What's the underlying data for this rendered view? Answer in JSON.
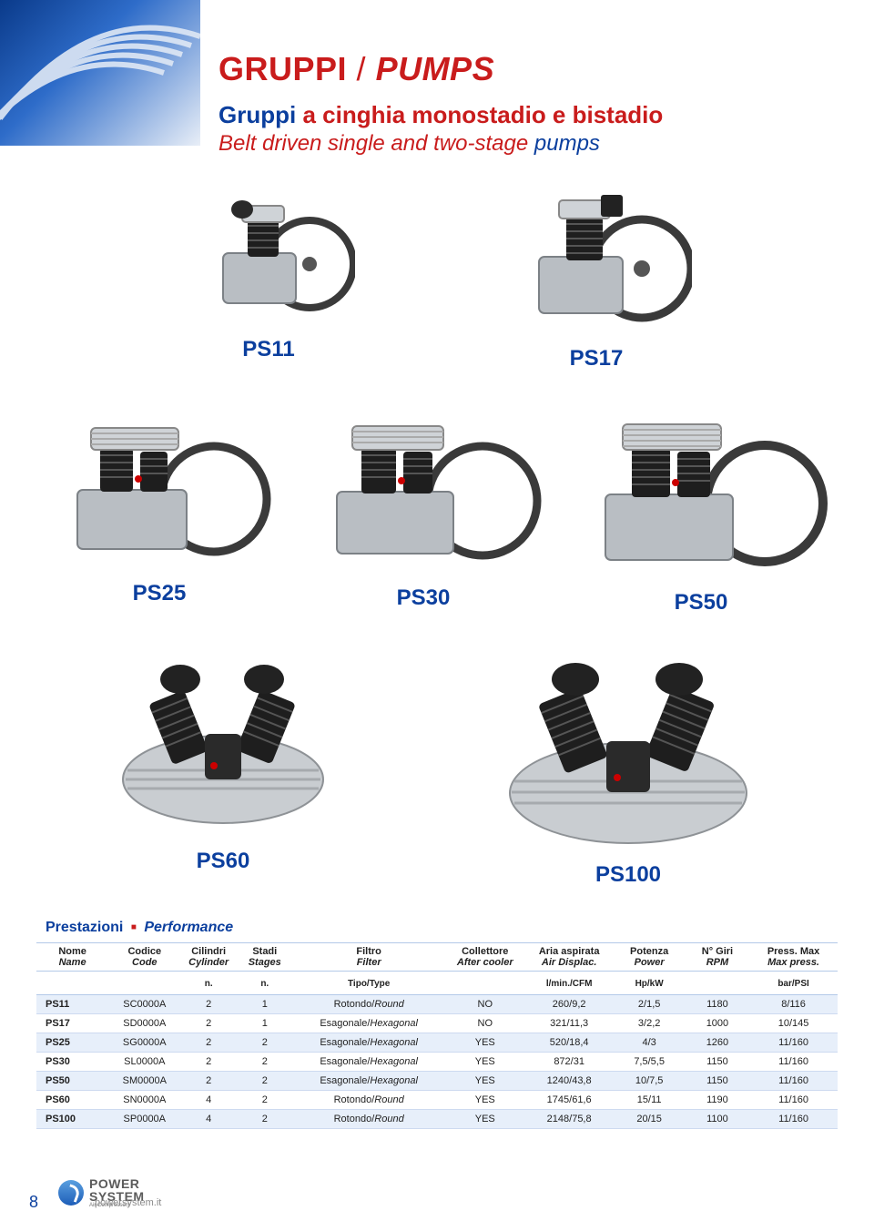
{
  "header": {
    "title_it": "GRUPPI",
    "title_en": "PUMPS",
    "sub_it_part1": "Gruppi",
    "sub_it_part2": "a cinghia monostadio e bistadio",
    "sub_en_part1": "Belt driven single and two-stage",
    "sub_en_part2": "pumps"
  },
  "colors": {
    "blue": "#0b3f9e",
    "red": "#c91c1c",
    "row_stripe": "#e7effa",
    "rule": "#b3c9e8"
  },
  "products": {
    "row1": [
      {
        "label": "PS11"
      },
      {
        "label": "PS17"
      }
    ],
    "row2": [
      {
        "label": "PS25"
      },
      {
        "label": "PS30"
      },
      {
        "label": "PS50"
      }
    ],
    "row3": [
      {
        "label": "PS60"
      },
      {
        "label": "PS100"
      }
    ]
  },
  "perf_label": {
    "a": "Prestazioni",
    "b": "Performance"
  },
  "table": {
    "columns": [
      {
        "it": "Nome",
        "en": "Name",
        "unit": ""
      },
      {
        "it": "Codice",
        "en": "Code",
        "unit": ""
      },
      {
        "it": "Cilindri",
        "en": "Cylinder",
        "unit": "n."
      },
      {
        "it": "Stadi",
        "en": "Stages",
        "unit": "n."
      },
      {
        "it": "Filtro",
        "en": "Filter",
        "unit": "Tipo/Type"
      },
      {
        "it": "Collettore",
        "en": "After cooler",
        "unit": ""
      },
      {
        "it": "Aria aspirata",
        "en": "Air Displac.",
        "unit": "l/min./CFM"
      },
      {
        "it": "Potenza",
        "en": "Power",
        "unit": "Hp/kW"
      },
      {
        "it": "N° Giri",
        "en": "RPM",
        "unit": ""
      },
      {
        "it": "Press. Max",
        "en": "Max press.",
        "unit": "bar/PSI"
      }
    ],
    "rows": [
      {
        "name": "PS11",
        "code": "SC0000A",
        "cyl": "2",
        "stage": "1",
        "filter_it": "Rotondo",
        "filter_en": "Round",
        "cooler": "NO",
        "air": "260/9,2",
        "power": "2/1,5",
        "rpm": "1180",
        "press": "8/116"
      },
      {
        "name": "PS17",
        "code": "SD0000A",
        "cyl": "2",
        "stage": "1",
        "filter_it": "Esagonale",
        "filter_en": "Hexagonal",
        "cooler": "NO",
        "air": "321/11,3",
        "power": "3/2,2",
        "rpm": "1000",
        "press": "10/145"
      },
      {
        "name": "PS25",
        "code": "SG0000A",
        "cyl": "2",
        "stage": "2",
        "filter_it": "Esagonale",
        "filter_en": "Hexagonal",
        "cooler": "YES",
        "air": "520/18,4",
        "power": "4/3",
        "rpm": "1260",
        "press": "11/160"
      },
      {
        "name": "PS30",
        "code": "SL0000A",
        "cyl": "2",
        "stage": "2",
        "filter_it": "Esagonale",
        "filter_en": "Hexagonal",
        "cooler": "YES",
        "air": "872/31",
        "power": "7,5/5,5",
        "rpm": "1150",
        "press": "11/160"
      },
      {
        "name": "PS50",
        "code": "SM0000A",
        "cyl": "2",
        "stage": "2",
        "filter_it": "Esagonale",
        "filter_en": "Hexagonal",
        "cooler": "YES",
        "air": "1240/43,8",
        "power": "10/7,5",
        "rpm": "1150",
        "press": "11/160"
      },
      {
        "name": "PS60",
        "code": "SN0000A",
        "cyl": "4",
        "stage": "2",
        "filter_it": "Rotondo",
        "filter_en": "Round",
        "cooler": "YES",
        "air": "1745/61,6",
        "power": "15/11",
        "rpm": "1190",
        "press": "11/160"
      },
      {
        "name": "PS100",
        "code": "SP0000A",
        "cyl": "4",
        "stage": "2",
        "filter_it": "Rotondo",
        "filter_en": "Round",
        "cooler": "YES",
        "air": "2148/75,8",
        "power": "20/15",
        "rpm": "1100",
        "press": "11/160"
      }
    ]
  },
  "footer": {
    "page": "8",
    "site": "powersystem.it",
    "logo1": "POWER",
    "logo2": "SYSTEM",
    "logo3": "Air Compressors"
  }
}
